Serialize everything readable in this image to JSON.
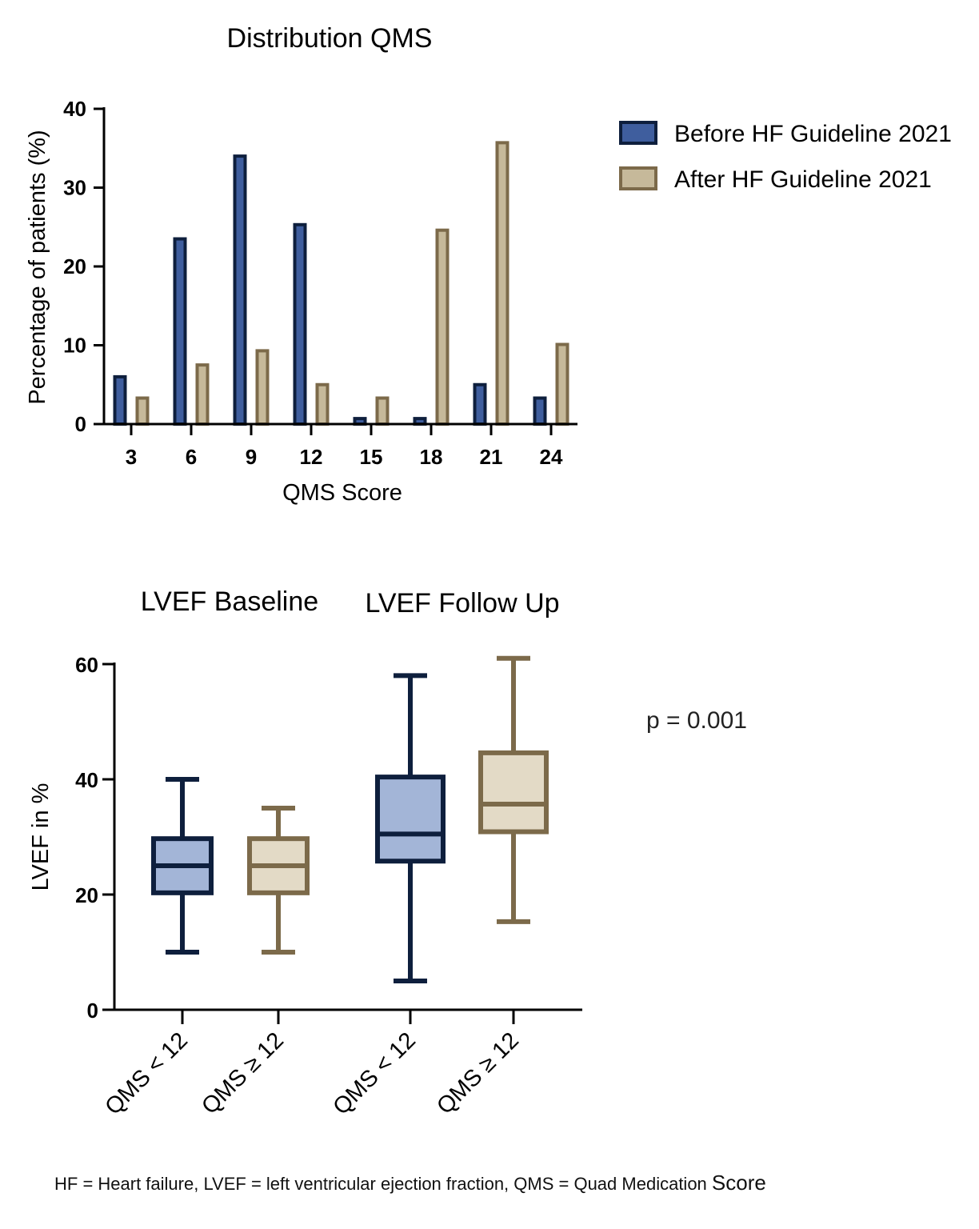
{
  "chart_data": [
    {
      "type": "bar",
      "title": "Distribution QMS",
      "xlabel": "QMS Score",
      "ylabel": "Percentage of patients (%)",
      "categories": [
        "3",
        "6",
        "9",
        "12",
        "15",
        "18",
        "21",
        "24"
      ],
      "ylim": [
        0,
        40
      ],
      "yticks": [
        "0",
        "10",
        "20",
        "30",
        "40"
      ],
      "legend_position": "top-right",
      "series": [
        {
          "name": "Before HF Guideline 2021",
          "fill": "#3f5e9e",
          "stroke": "#0e1f3d",
          "values": [
            6,
            23.5,
            34,
            25.3,
            0.7,
            0.7,
            5,
            3.3
          ]
        },
        {
          "name": "After HF Guideline 2021",
          "fill": "#c6b99a",
          "stroke": "#7c6a4a",
          "values": [
            3.3,
            7.5,
            9.3,
            5,
            3.3,
            24.6,
            35.7,
            10.1
          ]
        }
      ]
    },
    {
      "type": "box",
      "group_titles": [
        "LVEF Baseline",
        "LVEF Follow Up"
      ],
      "ylabel": "LVEF in %",
      "ylim": [
        0,
        60
      ],
      "yticks": [
        "0",
        "20",
        "40",
        "60"
      ],
      "categories": [
        "QMS < 12",
        "QMS ≥ 12",
        "QMS < 12",
        "QMS ≥ 12"
      ],
      "annotation": "p = 0.001",
      "boxes": [
        {
          "group": "LVEF Baseline",
          "category": "QMS < 12",
          "min": 10,
          "q1": 20.3,
          "median": 25,
          "q3": 29.7,
          "max": 40,
          "fill": "#a3b5d7",
          "stroke": "#0e1f3d"
        },
        {
          "group": "LVEF Baseline",
          "category": "QMS ≥ 12",
          "min": 10,
          "q1": 20.3,
          "median": 25,
          "q3": 29.7,
          "max": 35,
          "fill": "#e3dac6",
          "stroke": "#7c6a4a"
        },
        {
          "group": "LVEF Follow Up",
          "category": "QMS < 12",
          "min": 5,
          "q1": 25.8,
          "median": 30.5,
          "q3": 40.4,
          "max": 58,
          "fill": "#a3b5d7",
          "stroke": "#0e1f3d"
        },
        {
          "group": "LVEF Follow Up",
          "category": "QMS ≥ 12",
          "min": 15.3,
          "q1": 30.9,
          "median": 35.7,
          "q3": 44.6,
          "max": 61,
          "fill": "#e3dac6",
          "stroke": "#7c6a4a"
        }
      ]
    }
  ],
  "footnote": {
    "text": "HF = Heart failure, LVEF = left ventricular ejection fraction, QMS = Quad Medication ",
    "last_word": "Score"
  }
}
